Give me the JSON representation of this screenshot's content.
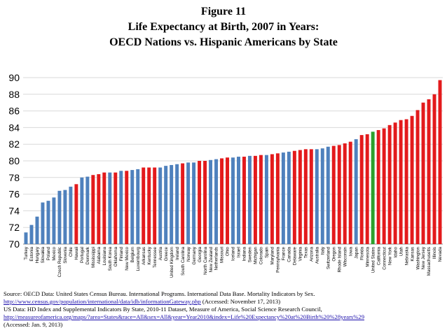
{
  "chart_data": {
    "type": "bar",
    "title": "Figure 11",
    "subtitle_lines": [
      "Life Expectancy at Birth, 2007 in Years:",
      "OECD Nations vs. Hispanic Americans by State"
    ],
    "xlabel": "",
    "ylabel": "",
    "ylim": [
      70,
      90
    ],
    "yticks": [
      70,
      72,
      74,
      76,
      78,
      80,
      82,
      84,
      86,
      88,
      90
    ],
    "grid": true,
    "legend": "none",
    "colors": {
      "oecd": "#4f81bd",
      "state": "#e31a1c",
      "united_states": "#2ca02c",
      "gridline": "#d9d9d9",
      "axis": "#888888"
    },
    "categories": [
      "Turkey",
      "Estonia",
      "Hungary",
      "Slovakia",
      "Poland",
      "Mexico",
      "Czech Republic",
      "Slovenia",
      "Chile",
      "Hawaii",
      "Portugal",
      "Denmark",
      "Mississippi",
      "Alabama",
      "Louisiana",
      "South Korea",
      "Oklahoma",
      "Finland",
      "New Mexico",
      "Belgium",
      "Luxembourg",
      "Arkansas",
      "Kentucky",
      "Tennessee",
      "Austria",
      "Greece",
      "United Kingdom",
      "Ireland",
      "South Carolina",
      "Norway",
      "Germany",
      "Georgia",
      "North Carolina",
      "New Zealand",
      "Netherlands",
      "Missouri",
      "Ohio",
      "Iceland",
      "Israel",
      "Indiana",
      "Sweden",
      "Michigan",
      "Colorado",
      "Spain",
      "Maryland",
      "Pennsylvania",
      "France",
      "Canada",
      "Delaware",
      "Virginia",
      "Texas",
      "Arizona",
      "Australia",
      "Italy",
      "Switzerland",
      "Oregon",
      "Rhode Island",
      "Wisconsin",
      "Iowa",
      "Japan",
      "Florida",
      "Minnesota",
      "United States",
      "California",
      "Connecticut",
      "New York",
      "Idaho",
      "Utah",
      "Nebraska",
      "Kansas",
      "Washington",
      "New Jersey",
      "Massachusetts",
      "Illinois",
      "Nevada"
    ],
    "values": [
      71.4,
      72.3,
      73.3,
      75.0,
      75.2,
      75.6,
      76.4,
      76.5,
      76.9,
      77.2,
      78.0,
      78.1,
      78.3,
      78.4,
      78.6,
      78.6,
      78.6,
      78.8,
      78.8,
      78.9,
      79.0,
      79.2,
      79.2,
      79.2,
      79.2,
      79.4,
      79.5,
      79.6,
      79.7,
      79.8,
      79.8,
      80.0,
      80.0,
      80.1,
      80.2,
      80.3,
      80.4,
      80.4,
      80.5,
      80.5,
      80.6,
      80.6,
      80.7,
      80.7,
      80.8,
      80.9,
      81.0,
      81.1,
      81.2,
      81.3,
      81.4,
      81.4,
      81.4,
      81.5,
      81.7,
      81.8,
      81.9,
      82.1,
      82.3,
      82.6,
      83.1,
      83.2,
      83.5,
      83.7,
      83.9,
      84.3,
      84.6,
      84.9,
      85.0,
      85.4,
      86.1,
      87.0,
      87.4,
      88.0,
      89.7
    ],
    "groups": [
      "oecd",
      "oecd",
      "oecd",
      "oecd",
      "oecd",
      "oecd",
      "oecd",
      "oecd",
      "oecd",
      "state",
      "oecd",
      "oecd",
      "state",
      "state",
      "state",
      "oecd",
      "state",
      "oecd",
      "state",
      "oecd",
      "oecd",
      "state",
      "state",
      "state",
      "oecd",
      "oecd",
      "oecd",
      "oecd",
      "state",
      "oecd",
      "oecd",
      "state",
      "state",
      "oecd",
      "oecd",
      "state",
      "state",
      "oecd",
      "oecd",
      "state",
      "oecd",
      "state",
      "state",
      "oecd",
      "state",
      "state",
      "oecd",
      "oecd",
      "state",
      "state",
      "state",
      "state",
      "oecd",
      "oecd",
      "oecd",
      "state",
      "state",
      "state",
      "state",
      "oecd",
      "state",
      "state",
      "united_states",
      "state",
      "state",
      "state",
      "state",
      "state",
      "state",
      "state",
      "state",
      "state",
      "state",
      "state",
      "state"
    ]
  },
  "source": {
    "line1": "Source: OECD Data: United States Census Bureau. International Programs. International Data Base. Mortality Indicators by Sex.",
    "line2_url": "http://www.census.gov/population/international/data/idb/informationGateway.php",
    "line2_rest": " (Accessed: November 17, 2013)",
    "line3": "US Data: HD Index and Supplemental Indicators By State, 2010-11 Dataset, Measure of America, Social Science Research Council,",
    "line4_url": "http://measureofamerica.org/maps/?area=States&race=All&sex=All&year=Year2010&index=Life%20Expectancy%20at%20Birth%20%28years%29",
    "line5": "(Accessed: Jan. 9, 2013)"
  }
}
